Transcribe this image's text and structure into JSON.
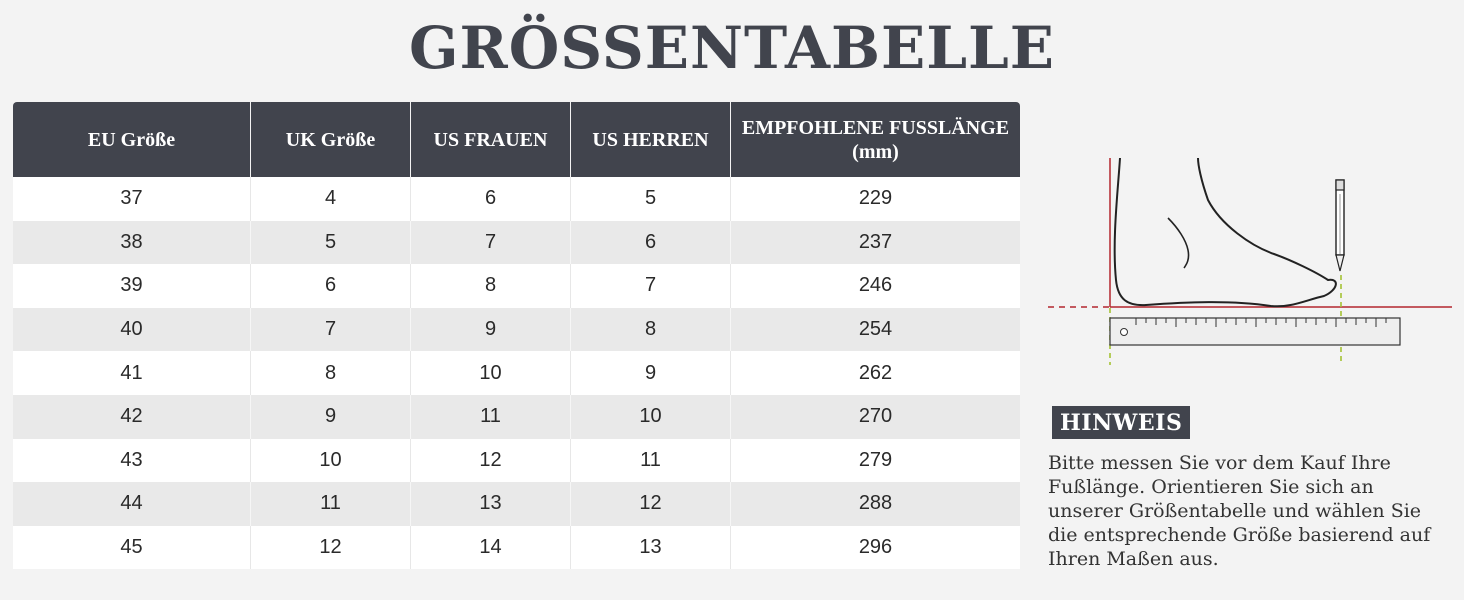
{
  "title": "GRÖSSENTABELLE",
  "table": {
    "headers": [
      "EU Größe",
      "UK Größe",
      "US FRAUEN",
      "US HERREN",
      "EMPFOHLENE FUSSLÄNGE (mm)"
    ],
    "rows": [
      [
        "37",
        "4",
        "6",
        "5",
        "229"
      ],
      [
        "38",
        "5",
        "7",
        "6",
        "237"
      ],
      [
        "39",
        "6",
        "8",
        "7",
        "246"
      ],
      [
        "40",
        "7",
        "9",
        "8",
        "254"
      ],
      [
        "41",
        "8",
        "10",
        "9",
        "262"
      ],
      [
        "42",
        "9",
        "11",
        "10",
        "270"
      ],
      [
        "43",
        "10",
        "12",
        "11",
        "279"
      ],
      [
        "44",
        "11",
        "13",
        "12",
        "288"
      ],
      [
        "45",
        "12",
        "14",
        "13",
        "296"
      ]
    ]
  },
  "illustration": {
    "icon": "foot-measuring-icon",
    "colors": {
      "wall_line": "#b3262e",
      "marker_line": "#a4c235",
      "ruler_fill": "#eeeeee",
      "outline": "#222222"
    }
  },
  "note": {
    "heading": "HINWEIS",
    "text": "Bitte messen Sie vor dem Kauf Ihre Fußlänge. Orientieren Sie sich an unserer Größentabelle und wählen Sie die entsprechende Größe basierend auf Ihren Maßen aus."
  },
  "colors": {
    "header_bg": "#41444d",
    "row_alt": "#e9e9e9",
    "page_bg": "#f3f3f3"
  }
}
